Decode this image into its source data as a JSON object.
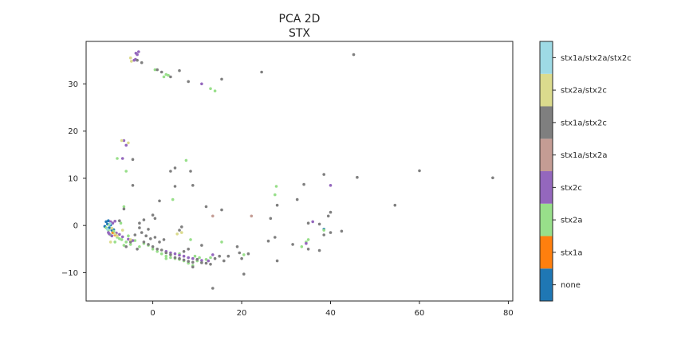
{
  "chart_data": {
    "type": "scatter",
    "title": "PCA 2D",
    "subtitle": "STX",
    "xlabel": "",
    "ylabel": "",
    "xlim": [
      -15,
      81
    ],
    "ylim": [
      -16,
      39
    ],
    "xticks": [
      0,
      20,
      40,
      60,
      80
    ],
    "yticks": [
      -10,
      0,
      10,
      20,
      30
    ],
    "grid": false,
    "colorbar": {
      "categories": [
        "none",
        "stx1a",
        "stx2a",
        "stx2c",
        "stx1a/stx2a",
        "stx1a/stx2c",
        "stx2a/stx2c",
        "stx1a/stx2a/stx2c"
      ],
      "colors": [
        "#1f77b4",
        "#ff7f0e",
        "#98df8a",
        "#9467bd",
        "#c49c94",
        "#7f7f7f",
        "#dbdb8d",
        "#9edae5"
      ]
    },
    "series": [
      {
        "color": "#1f77b4",
        "points": [
          [
            -10.5,
            0.8
          ],
          [
            -10.2,
            0.3
          ],
          [
            -9.8,
            -0.5
          ],
          [
            -9.5,
            0.1
          ],
          [
            -10.8,
            -0.2
          ],
          [
            -9.2,
            -1.0
          ],
          [
            38.5,
            -0.8
          ],
          [
            -8.8,
            -0.9
          ],
          [
            -10.0,
            1.0
          ]
        ]
      },
      {
        "color": "#ff7f0e",
        "points": [
          [
            -9.0,
            -1.5
          ],
          [
            -8.5,
            -2.0
          ]
        ]
      },
      {
        "color": "#98df8a",
        "points": [
          [
            0.5,
            33
          ],
          [
            2.5,
            31.5
          ],
          [
            3,
            32
          ],
          [
            3.5,
            31.8
          ],
          [
            14,
            28.5
          ],
          [
            13,
            29
          ],
          [
            -8,
            14.2
          ],
          [
            7.5,
            13.8
          ],
          [
            -6,
            11.5
          ],
          [
            -6.5,
            4
          ],
          [
            4.5,
            5.5
          ],
          [
            -10,
            -1
          ],
          [
            -9.5,
            -2
          ],
          [
            -8,
            -2.5
          ],
          [
            -7,
            -3
          ],
          [
            -6,
            -3.5
          ],
          [
            -5,
            -4
          ],
          [
            -4,
            -3.2
          ],
          [
            -3,
            -4.5
          ],
          [
            -2,
            -3.8
          ],
          [
            -1,
            -4.2
          ],
          [
            0,
            -5
          ],
          [
            1,
            -5.5
          ],
          [
            2,
            -6
          ],
          [
            3,
            -6.5
          ],
          [
            4,
            -6.8
          ],
          [
            5,
            -7
          ],
          [
            6,
            -7.2
          ],
          [
            7,
            -7.5
          ],
          [
            8,
            -8
          ],
          [
            9,
            -8.5
          ],
          [
            10,
            -7.5
          ],
          [
            11,
            -7.8
          ],
          [
            12,
            -7.2
          ],
          [
            13,
            -6.8
          ],
          [
            15.5,
            -3.5
          ],
          [
            20.5,
            -6.2
          ],
          [
            27.5,
            6.5
          ],
          [
            27.8,
            8.3
          ],
          [
            33.5,
            -4.5
          ],
          [
            34.5,
            -3.5
          ],
          [
            35,
            -3
          ],
          [
            38.5,
            -1
          ],
          [
            -7.5,
            -2.8
          ],
          [
            -8.5,
            -3.5
          ],
          [
            -6.5,
            -4.2
          ],
          [
            -5.5,
            -2.2
          ],
          [
            3,
            -7
          ],
          [
            6,
            -6
          ],
          [
            8.5,
            -3
          ],
          [
            9.5,
            -6.5
          ],
          [
            10.5,
            -6.8
          ],
          [
            -7.2,
            0.5
          ],
          [
            -8.8,
            -1.2
          ],
          [
            -9.8,
            0.2
          ],
          [
            -10.5,
            -0.5
          ]
        ]
      },
      {
        "color": "#9467bd",
        "points": [
          [
            -3.8,
            36.5
          ],
          [
            -3.5,
            36.2
          ],
          [
            -3.2,
            36.8
          ],
          [
            -3.9,
            35.2
          ],
          [
            -4.2,
            35
          ],
          [
            11,
            30
          ],
          [
            -6.5,
            18
          ],
          [
            -6,
            17
          ],
          [
            -6.8,
            14.2
          ],
          [
            40,
            8.5
          ],
          [
            -9.5,
            0.8
          ],
          [
            -9,
            0.5
          ],
          [
            -8.5,
            0.9
          ],
          [
            -10,
            -1.5
          ],
          [
            -9.8,
            -1.8
          ],
          [
            -9.2,
            -2.2
          ],
          [
            -8.2,
            -1.6
          ],
          [
            -7.5,
            -1.9
          ],
          [
            -6.8,
            -2.4
          ],
          [
            -5.5,
            -2.9
          ],
          [
            -4.5,
            -3.2
          ],
          [
            3,
            -5.5
          ],
          [
            4,
            -5.8
          ],
          [
            5,
            -6
          ],
          [
            6,
            -6.3
          ],
          [
            7,
            -6.5
          ],
          [
            8,
            -6.8
          ],
          [
            9,
            -7
          ],
          [
            10,
            -7.2
          ],
          [
            11,
            -7.4
          ],
          [
            12.5,
            -7.5
          ],
          [
            13.5,
            -6.2
          ],
          [
            36,
            0.8
          ],
          [
            34.5,
            -3.8
          ]
        ]
      },
      {
        "color": "#c49c94",
        "points": [
          [
            22.2,
            2
          ],
          [
            13.5,
            2
          ]
        ]
      },
      {
        "color": "#7f7f7f",
        "points": [
          [
            -3.5,
            35
          ],
          [
            -2.5,
            34.5
          ],
          [
            1,
            33
          ],
          [
            2,
            32.5
          ],
          [
            4,
            31.5
          ],
          [
            6,
            32.8
          ],
          [
            8,
            30.5
          ],
          [
            15.5,
            31
          ],
          [
            24.5,
            32.5
          ],
          [
            45.2,
            36.2
          ],
          [
            -4.5,
            14
          ],
          [
            4,
            11.5
          ],
          [
            5,
            12.2
          ],
          [
            8.5,
            11.5
          ],
          [
            9,
            8.5
          ],
          [
            5,
            8.3
          ],
          [
            -4.5,
            8.5
          ],
          [
            1.5,
            5.2
          ],
          [
            12,
            4
          ],
          [
            15.5,
            3.3
          ],
          [
            -6.5,
            3.5
          ],
          [
            -7.5,
            1
          ],
          [
            0,
            2.2
          ],
          [
            0.5,
            1.5
          ],
          [
            6.5,
            -0.3
          ],
          [
            6,
            -1
          ],
          [
            -2,
            1.2
          ],
          [
            -1,
            -0.8
          ],
          [
            -3,
            0.5
          ],
          [
            -2.5,
            -1.5
          ],
          [
            -1.5,
            -2.2
          ],
          [
            -0.5,
            -2.8
          ],
          [
            0.5,
            -2.5
          ],
          [
            1.5,
            -3.5
          ],
          [
            2.5,
            -3
          ],
          [
            -2,
            -3.5
          ],
          [
            -1,
            -4
          ],
          [
            0,
            -4.5
          ],
          [
            1,
            -5
          ],
          [
            2,
            -5.2
          ],
          [
            3,
            -5.8
          ],
          [
            4,
            -6.2
          ],
          [
            5,
            -6.8
          ],
          [
            6,
            -7
          ],
          [
            7,
            -7.3
          ],
          [
            8,
            -7.6
          ],
          [
            9,
            -7.8
          ],
          [
            10,
            -7.2
          ],
          [
            11,
            -7.9
          ],
          [
            12,
            -8
          ],
          [
            13,
            -8.2
          ],
          [
            14,
            -7
          ],
          [
            15,
            -6.5
          ],
          [
            16,
            -7.5
          ],
          [
            17,
            -6.5
          ],
          [
            19,
            -4.5
          ],
          [
            19.5,
            -5.8
          ],
          [
            20,
            -7
          ],
          [
            20.5,
            -10.3
          ],
          [
            21.5,
            -6
          ],
          [
            13.5,
            -13.3
          ],
          [
            26.5,
            1.5
          ],
          [
            27.5,
            -2.5
          ],
          [
            26,
            -3.3
          ],
          [
            28,
            -7.5
          ],
          [
            28,
            4.3
          ],
          [
            32.5,
            5.5
          ],
          [
            34,
            8.7
          ],
          [
            38.5,
            10.8
          ],
          [
            46,
            10.2
          ],
          [
            60,
            11.6
          ],
          [
            76.5,
            10.1
          ],
          [
            54.5,
            4.3
          ],
          [
            40,
            2.8
          ],
          [
            39.5,
            2
          ],
          [
            40,
            -1.5
          ],
          [
            42.5,
            -1.2
          ],
          [
            38.5,
            -2
          ],
          [
            37.5,
            -5.3
          ],
          [
            35,
            -5
          ],
          [
            31.5,
            -4
          ],
          [
            35,
            0.5
          ],
          [
            37.5,
            0.3
          ],
          [
            -3,
            -0.5
          ],
          [
            -4,
            -2
          ],
          [
            -5,
            -3.5
          ],
          [
            -6,
            -4.5
          ],
          [
            -3.5,
            -5
          ],
          [
            7,
            -5.5
          ],
          [
            8,
            -5
          ],
          [
            11,
            -4.2
          ],
          [
            9,
            -8.8
          ]
        ]
      },
      {
        "color": "#dbdb8d",
        "points": [
          [
            -5,
            35.5
          ],
          [
            -4.8,
            34.8
          ],
          [
            -7,
            18
          ],
          [
            -5.5,
            17.5
          ],
          [
            5.5,
            -1.8
          ],
          [
            6.5,
            -1.5
          ],
          [
            -9.5,
            -3.5
          ],
          [
            -8,
            -2.2
          ],
          [
            -5,
            -3
          ],
          [
            -6.8,
            -1
          ],
          [
            -9.2,
            -0.6
          ],
          [
            -8.5,
            -1.8
          ]
        ]
      },
      {
        "color": "#9edae5",
        "points": [
          [
            -10.2,
            -0.8
          ],
          [
            -9.6,
            0.4
          ]
        ]
      }
    ]
  }
}
